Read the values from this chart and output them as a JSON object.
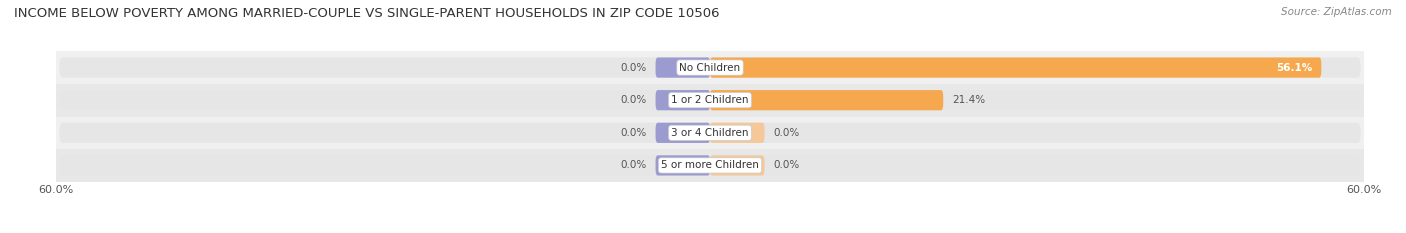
{
  "title": "INCOME BELOW POVERTY AMONG MARRIED-COUPLE VS SINGLE-PARENT HOUSEHOLDS IN ZIP CODE 10506",
  "source": "Source: ZipAtlas.com",
  "categories": [
    "No Children",
    "1 or 2 Children",
    "3 or 4 Children",
    "5 or more Children"
  ],
  "married_values": [
    0.0,
    0.0,
    0.0,
    0.0
  ],
  "single_values": [
    56.1,
    21.4,
    0.0,
    0.0
  ],
  "xlim": 60.0,
  "married_color": "#9b9bcf",
  "single_color": "#f5a84e",
  "single_color_zero": "#f5c89a",
  "bar_bg_color": "#e6e6e6",
  "row_bg_even": "#f0f0f0",
  "row_bg_odd": "#e8e8e8",
  "title_fontsize": 9.5,
  "source_fontsize": 7.5,
  "value_fontsize": 7.5,
  "category_fontsize": 7.5,
  "axis_label_fontsize": 8,
  "bar_height": 0.62,
  "background_color": "#ffffff",
  "married_stub": 5.0,
  "zero_single_stub": 5.0
}
